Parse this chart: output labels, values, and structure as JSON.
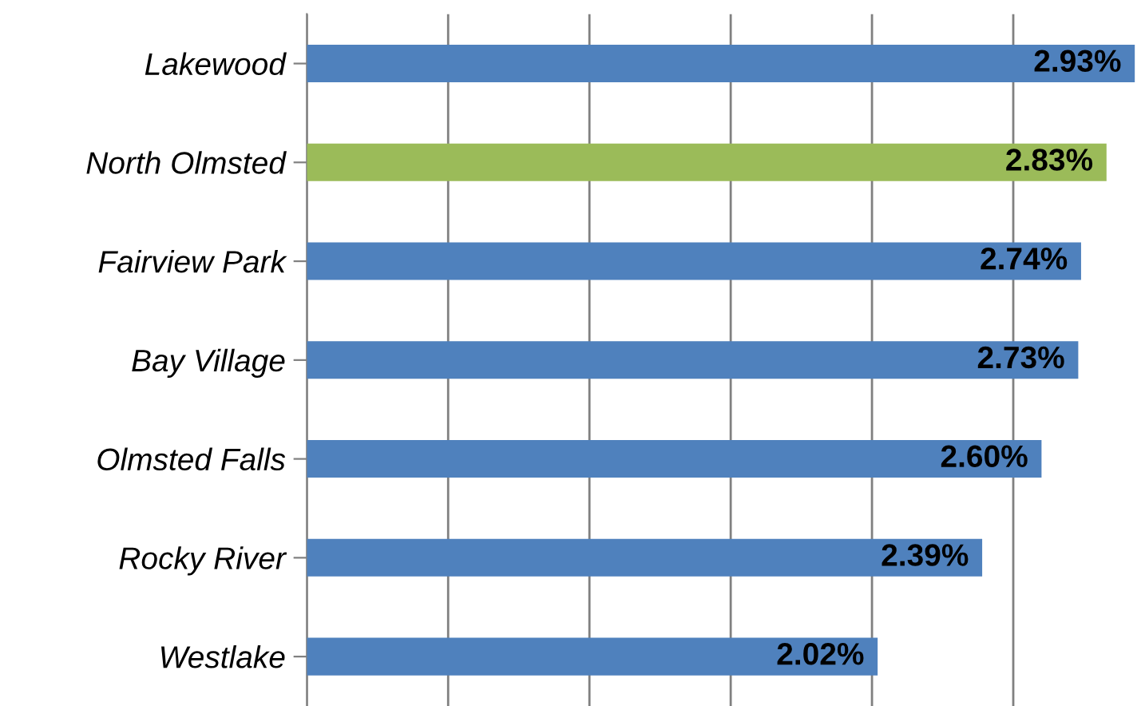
{
  "chart_data": {
    "type": "bar",
    "orientation": "horizontal",
    "categories": [
      "Lakewood",
      "North Olmsted",
      "Fairview Park",
      "Bay Village",
      "Olmsted Falls",
      "Rocky River",
      "Westlake"
    ],
    "values": [
      2.93,
      2.83,
      2.74,
      2.73,
      2.6,
      2.39,
      2.02
    ],
    "colors": [
      "#4f81bd",
      "#9bbb59",
      "#4f81bd",
      "#4f81bd",
      "#4f81bd",
      "#4f81bd",
      "#4f81bd"
    ],
    "value_labels": [
      "2.93%",
      "2.83%",
      "2.74%",
      "2.73%",
      "2.60%",
      "2.39%",
      "2.02%"
    ],
    "xlim": [
      0,
      2.95
    ],
    "xticks": [
      {
        "value": 0,
        "label": null
      },
      {
        "value": 0.5,
        "label": null
      },
      {
        "value": 1.0,
        "label": null
      },
      {
        "value": 1.5,
        "label": null
      },
      {
        "value": 2.0,
        "label": null
      },
      {
        "value": 2.5,
        "label": null
      }
    ],
    "grid": "x",
    "tick_labels": "y"
  }
}
